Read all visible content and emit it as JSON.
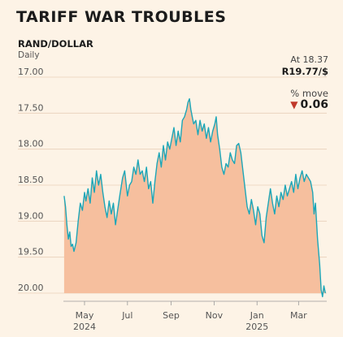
{
  "title": "TARIFF WAR TROUBLES",
  "subtitle": "RAND/DOLLAR",
  "unit": "Daily",
  "annotation": {
    "at_label": "At 18.37",
    "at_value": "R19.77/$",
    "move_label": "% move",
    "move_value": "0.06",
    "move_direction": "down"
  },
  "colors": {
    "line": "#1ba6b8",
    "fill": "#f6bf9e",
    "grid": "#e8cfb8",
    "text": "#555555"
  },
  "chart_data": {
    "type": "area",
    "title": "RAND/DOLLAR",
    "xlabel": "",
    "ylabel": "",
    "y_inverted": true,
    "ylim": [
      17.0,
      20.0
    ],
    "ytick_labels": [
      "17.00",
      "17.50",
      "18.00",
      "18.50",
      "19.00",
      "19.50",
      "20.00"
    ],
    "ytick_values": [
      17.0,
      17.5,
      18.0,
      18.5,
      19.0,
      19.5,
      20.0
    ],
    "xticks": [
      {
        "date": "2024-05-01",
        "label": "May",
        "year": "2024"
      },
      {
        "date": "2024-07-01",
        "label": "Jul",
        "year": ""
      },
      {
        "date": "2024-09-01",
        "label": "Sep",
        "year": ""
      },
      {
        "date": "2024-11-01",
        "label": "Nov",
        "year": ""
      },
      {
        "date": "2025-01-01",
        "label": "Jan",
        "year": "2025"
      },
      {
        "date": "2025-03-01",
        "label": "Mar",
        "year": ""
      }
    ],
    "xlim": [
      "2024-04-01",
      "2025-04-10"
    ],
    "series": [
      {
        "points": [
          [
            "2024-04-02",
            18.65
          ],
          [
            "2024-04-04",
            18.8
          ],
          [
            "2024-04-06",
            19.05
          ],
          [
            "2024-04-08",
            19.25
          ],
          [
            "2024-04-10",
            19.15
          ],
          [
            "2024-04-12",
            19.35
          ],
          [
            "2024-04-14",
            19.32
          ],
          [
            "2024-04-16",
            19.42
          ],
          [
            "2024-04-19",
            19.3
          ],
          [
            "2024-04-22",
            19.0
          ],
          [
            "2024-04-25",
            18.75
          ],
          [
            "2024-04-28",
            18.85
          ],
          [
            "2024-05-01",
            18.6
          ],
          [
            "2024-05-03",
            18.72
          ],
          [
            "2024-05-06",
            18.55
          ],
          [
            "2024-05-09",
            18.75
          ],
          [
            "2024-05-12",
            18.4
          ],
          [
            "2024-05-15",
            18.6
          ],
          [
            "2024-05-18",
            18.3
          ],
          [
            "2024-05-21",
            18.5
          ],
          [
            "2024-05-24",
            18.35
          ],
          [
            "2024-05-27",
            18.6
          ],
          [
            "2024-05-30",
            18.8
          ],
          [
            "2024-06-02",
            18.95
          ],
          [
            "2024-06-05",
            18.72
          ],
          [
            "2024-06-08",
            18.9
          ],
          [
            "2024-06-11",
            18.75
          ],
          [
            "2024-06-14",
            19.05
          ],
          [
            "2024-06-17",
            18.85
          ],
          [
            "2024-06-20",
            18.65
          ],
          [
            "2024-06-24",
            18.4
          ],
          [
            "2024-06-27",
            18.3
          ],
          [
            "2024-07-01",
            18.65
          ],
          [
            "2024-07-04",
            18.5
          ],
          [
            "2024-07-07",
            18.45
          ],
          [
            "2024-07-10",
            18.25
          ],
          [
            "2024-07-13",
            18.35
          ],
          [
            "2024-07-16",
            18.15
          ],
          [
            "2024-07-19",
            18.35
          ],
          [
            "2024-07-22",
            18.3
          ],
          [
            "2024-07-25",
            18.45
          ],
          [
            "2024-07-28",
            18.25
          ],
          [
            "2024-07-31",
            18.55
          ],
          [
            "2024-08-03",
            18.45
          ],
          [
            "2024-08-06",
            18.75
          ],
          [
            "2024-08-09",
            18.45
          ],
          [
            "2024-08-12",
            18.2
          ],
          [
            "2024-08-15",
            18.05
          ],
          [
            "2024-08-18",
            18.25
          ],
          [
            "2024-08-21",
            17.95
          ],
          [
            "2024-08-24",
            18.15
          ],
          [
            "2024-08-27",
            17.9
          ],
          [
            "2024-08-30",
            18.0
          ],
          [
            "2024-09-02",
            17.85
          ],
          [
            "2024-09-05",
            17.7
          ],
          [
            "2024-09-08",
            17.95
          ],
          [
            "2024-09-11",
            17.75
          ],
          [
            "2024-09-14",
            17.9
          ],
          [
            "2024-09-17",
            17.6
          ],
          [
            "2024-09-20",
            17.55
          ],
          [
            "2024-09-23",
            17.45
          ],
          [
            "2024-09-25",
            17.35
          ],
          [
            "2024-09-27",
            17.3
          ],
          [
            "2024-09-29",
            17.45
          ],
          [
            "2024-10-01",
            17.55
          ],
          [
            "2024-10-03",
            17.65
          ],
          [
            "2024-10-06",
            17.6
          ],
          [
            "2024-10-09",
            17.8
          ],
          [
            "2024-10-12",
            17.6
          ],
          [
            "2024-10-15",
            17.75
          ],
          [
            "2024-10-18",
            17.65
          ],
          [
            "2024-10-21",
            17.85
          ],
          [
            "2024-10-24",
            17.7
          ],
          [
            "2024-10-27",
            17.9
          ],
          [
            "2024-10-30",
            17.75
          ],
          [
            "2024-11-02",
            17.65
          ],
          [
            "2024-11-04",
            17.55
          ],
          [
            "2024-11-06",
            17.8
          ],
          [
            "2024-11-09",
            18.0
          ],
          [
            "2024-11-12",
            18.25
          ],
          [
            "2024-11-15",
            18.35
          ],
          [
            "2024-11-18",
            18.2
          ],
          [
            "2024-11-21",
            18.25
          ],
          [
            "2024-11-24",
            18.05
          ],
          [
            "2024-11-27",
            18.15
          ],
          [
            "2024-11-30",
            18.2
          ],
          [
            "2024-12-03",
            17.95
          ],
          [
            "2024-12-06",
            17.92
          ],
          [
            "2024-12-09",
            18.05
          ],
          [
            "2024-12-12",
            18.3
          ],
          [
            "2024-12-15",
            18.55
          ],
          [
            "2024-12-18",
            18.8
          ],
          [
            "2024-12-21",
            18.9
          ],
          [
            "2024-12-24",
            18.7
          ],
          [
            "2024-12-27",
            18.85
          ],
          [
            "2024-12-30",
            19.05
          ],
          [
            "2025-01-02",
            18.8
          ],
          [
            "2025-01-05",
            18.9
          ],
          [
            "2025-01-08",
            19.2
          ],
          [
            "2025-01-11",
            19.3
          ],
          [
            "2025-01-14",
            18.95
          ],
          [
            "2025-01-17",
            18.75
          ],
          [
            "2025-01-20",
            18.55
          ],
          [
            "2025-01-23",
            18.75
          ],
          [
            "2025-01-26",
            18.9
          ],
          [
            "2025-01-29",
            18.65
          ],
          [
            "2025-02-01",
            18.8
          ],
          [
            "2025-02-04",
            18.6
          ],
          [
            "2025-02-07",
            18.7
          ],
          [
            "2025-02-10",
            18.5
          ],
          [
            "2025-02-13",
            18.65
          ],
          [
            "2025-02-16",
            18.55
          ],
          [
            "2025-02-19",
            18.45
          ],
          [
            "2025-02-22",
            18.6
          ],
          [
            "2025-02-25",
            18.35
          ],
          [
            "2025-02-28",
            18.55
          ],
          [
            "2025-03-03",
            18.4
          ],
          [
            "2025-03-06",
            18.3
          ],
          [
            "2025-03-09",
            18.45
          ],
          [
            "2025-03-12",
            18.35
          ],
          [
            "2025-03-15",
            18.4
          ],
          [
            "2025-03-18",
            18.45
          ],
          [
            "2025-03-21",
            18.6
          ],
          [
            "2025-03-23",
            18.9
          ],
          [
            "2025-03-25",
            18.75
          ],
          [
            "2025-03-28",
            19.25
          ],
          [
            "2025-03-31",
            19.6
          ],
          [
            "2025-04-02",
            19.95
          ],
          [
            "2025-04-04",
            20.05
          ],
          [
            "2025-04-06",
            19.9
          ],
          [
            "2025-04-08",
            20.0
          ]
        ]
      }
    ]
  }
}
